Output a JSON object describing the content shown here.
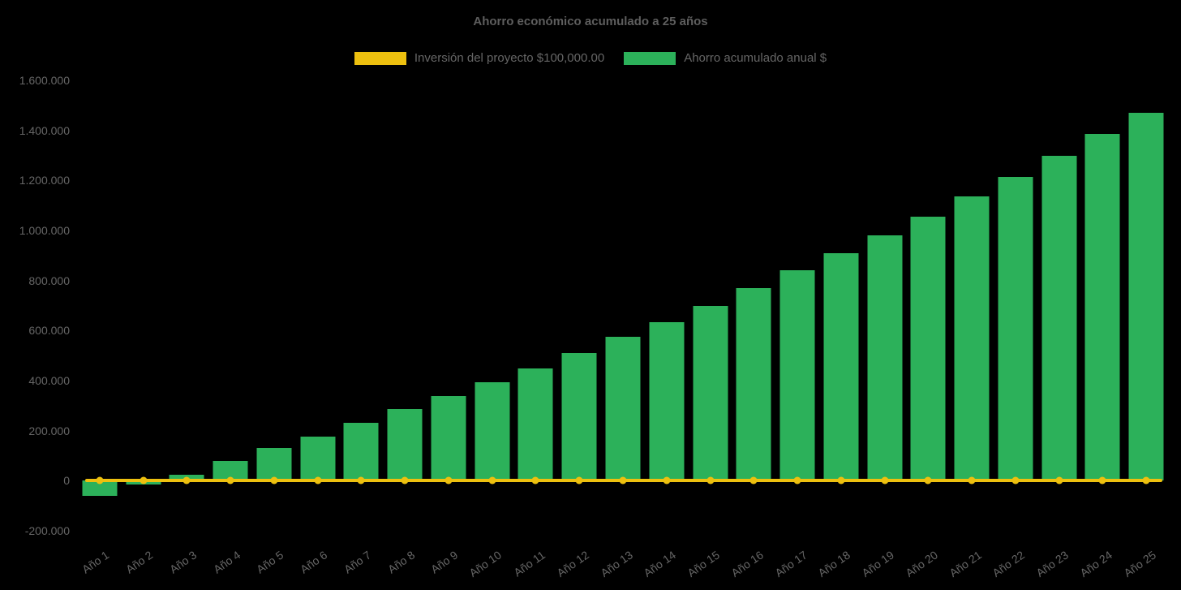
{
  "page": {
    "background_color": "#000000",
    "text_color": "#666666"
  },
  "chart_data": {
    "type": "bar",
    "title": "Ahorro económico acumulado a 25 años",
    "legend_position": "top",
    "grid": false,
    "xlabel": "",
    "ylabel": "",
    "ylim": [
      -200000,
      1600000
    ],
    "y_ticks": [
      {
        "label": "1.600.000",
        "value": 1600000
      },
      {
        "label": "1.400.000",
        "value": 1400000
      },
      {
        "label": "1.200.000",
        "value": 1200000
      },
      {
        "label": "1.000.000",
        "value": 1000000
      },
      {
        "label": "800.000",
        "value": 800000
      },
      {
        "label": "600.000",
        "value": 600000
      },
      {
        "label": "400.000",
        "value": 400000
      },
      {
        "label": "200.000",
        "value": 200000
      },
      {
        "label": "0",
        "value": 0
      },
      {
        "label": "-200.000",
        "value": -200000
      }
    ],
    "categories": [
      "Año 1",
      "Año 2",
      "Año 3",
      "Año 4",
      "Año 5",
      "Año 6",
      "Año 7",
      "Año 8",
      "Año 9",
      "Año 10",
      "Año 11",
      "Año 12",
      "Año 13",
      "Año 14",
      "Año 15",
      "Año 16",
      "Año 17",
      "Año 18",
      "Año 19",
      "Año 20",
      "Año 21",
      "Año 22",
      "Año 23",
      "Año 24",
      "Año 25"
    ],
    "series": [
      {
        "name": "Inversión del proyecto $100,000.00",
        "type": "line",
        "marker": "circle",
        "color": "#edc00f",
        "constant_value": 0
      },
      {
        "name": "Ahorro acumulado anual $",
        "type": "bar",
        "color": "#2cb15a",
        "values": [
          -60000,
          -15000,
          25000,
          78000,
          130000,
          175000,
          230000,
          285000,
          340000,
          395000,
          450000,
          510000,
          575000,
          635000,
          700000,
          770000,
          840000,
          910000,
          980000,
          1055000,
          1135000,
          1215000,
          1300000,
          1385000,
          1470000
        ]
      }
    ]
  }
}
